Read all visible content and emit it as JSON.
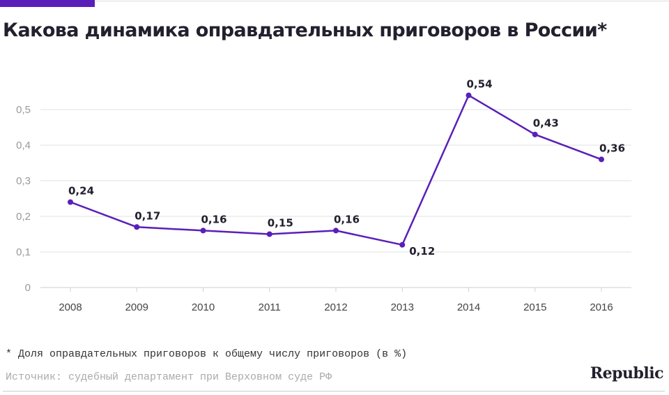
{
  "title": "Какова динамика оправдательных приговоров в России*",
  "footnote": "* Доля оправдательных приговоров к общему числу приговоров (в %)",
  "source": "Источник: судебный департамент при Верховном суде РФ",
  "logo": "Republic",
  "colors": {
    "accent": "#5a1fb8",
    "text": "#23202e",
    "grid": "#dddddd"
  },
  "chart_data": {
    "type": "line",
    "categories": [
      "2008",
      "2009",
      "2010",
      "2011",
      "2012",
      "2013",
      "2014",
      "2015",
      "2016"
    ],
    "values": [
      0.24,
      0.17,
      0.16,
      0.15,
      0.16,
      0.12,
      0.54,
      0.43,
      0.36
    ],
    "data_labels": [
      "0,24",
      "0,17",
      "0,16",
      "0,15",
      "0,16",
      "0,12",
      "0,54",
      "0,43",
      "0,36"
    ],
    "yticks": [
      0,
      0.1,
      0.2,
      0.3,
      0.4,
      0.5
    ],
    "ytick_labels": [
      "0",
      "0,1",
      "0,2",
      "0,3",
      "0,4",
      "0,5"
    ],
    "ylim": [
      0,
      0.5
    ],
    "grid": true
  }
}
